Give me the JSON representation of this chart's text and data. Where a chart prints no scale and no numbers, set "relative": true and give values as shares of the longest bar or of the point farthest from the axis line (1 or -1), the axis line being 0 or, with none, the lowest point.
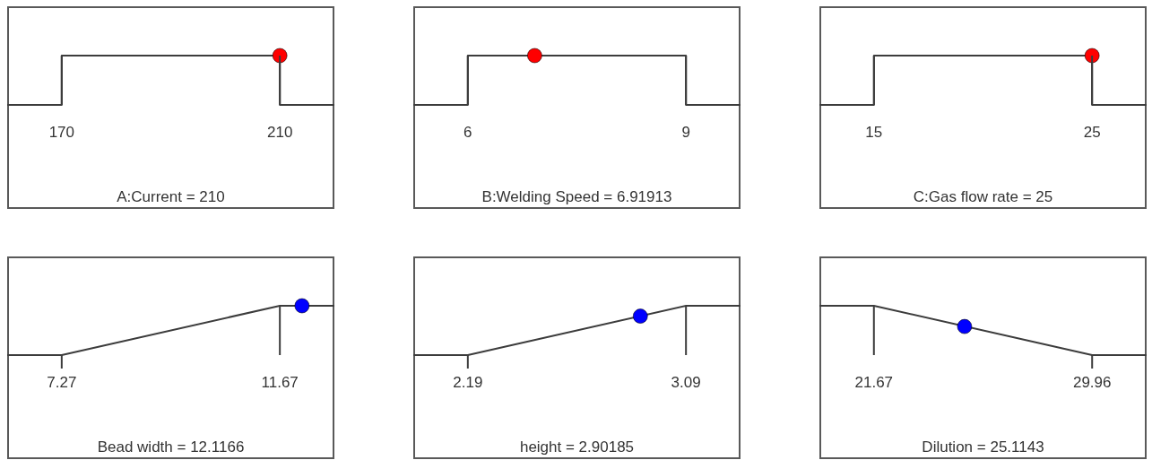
{
  "chart_data": [
    {
      "type": "line",
      "xlabel": "A:Current = 210",
      "relative": true,
      "xlim": [
        160,
        220
      ],
      "xticks": [
        170,
        210
      ],
      "series": [
        {
          "color": "#3c3c3c",
          "x": [
            160,
            170,
            170,
            210,
            210,
            220
          ],
          "values": [
            0,
            0,
            1,
            1,
            0,
            0
          ]
        },
        {
          "type": "scatter",
          "color": "#ff0000",
          "marker": "circle",
          "x": [
            210
          ],
          "values": [
            1
          ]
        }
      ]
    },
    {
      "type": "line",
      "xlabel": "B:Welding Speed = 6.91913",
      "relative": true,
      "xlim": [
        5.25,
        9.75
      ],
      "xticks": [
        6,
        9
      ],
      "series": [
        {
          "color": "#3c3c3c",
          "x": [
            5.25,
            6,
            6,
            9,
            9,
            9.75
          ],
          "values": [
            0,
            0,
            1,
            1,
            0,
            0
          ]
        },
        {
          "type": "scatter",
          "color": "#ff0000",
          "marker": "circle",
          "x": [
            6.91913
          ],
          "values": [
            1
          ]
        }
      ]
    },
    {
      "type": "line",
      "xlabel": "C:Gas flow rate = 25",
      "relative": true,
      "xlim": [
        12.5,
        27.5
      ],
      "xticks": [
        15,
        25
      ],
      "series": [
        {
          "color": "#3c3c3c",
          "x": [
            12.5,
            15,
            15,
            25,
            25,
            27.5
          ],
          "values": [
            0,
            0,
            1,
            1,
            0,
            0
          ]
        },
        {
          "type": "scatter",
          "color": "#ff0000",
          "marker": "circle",
          "x": [
            25
          ],
          "values": [
            1
          ]
        }
      ]
    },
    {
      "type": "line",
      "xlabel": "Bead width = 12.1166",
      "relative": true,
      "xlim": [
        6.17,
        12.77
      ],
      "xticks": [
        7.27,
        11.67
      ],
      "series": [
        {
          "color": "#3c3c3c",
          "x": [
            6.17,
            7.27,
            11.67,
            12.77
          ],
          "values": [
            0,
            0,
            1,
            1
          ]
        },
        {
          "type": "scatter",
          "color": "#0000ff",
          "marker": "circle",
          "x": [
            12.1166
          ],
          "values": [
            1
          ]
        }
      ]
    },
    {
      "type": "line",
      "xlabel": "height = 2.90185",
      "relative": true,
      "xlim": [
        1.965,
        3.315
      ],
      "xticks": [
        2.19,
        3.09
      ],
      "series": [
        {
          "color": "#3c3c3c",
          "x": [
            1.965,
            2.19,
            3.09,
            3.315
          ],
          "values": [
            0,
            0,
            1,
            1
          ]
        },
        {
          "type": "scatter",
          "color": "#0000ff",
          "marker": "circle",
          "x": [
            2.90185
          ],
          "values": [
            0.79
          ]
        }
      ]
    },
    {
      "type": "line",
      "xlabel": "Dilution = 25.1143",
      "relative": true,
      "xlim": [
        19.6,
        32.03
      ],
      "xticks": [
        21.67,
        29.96
      ],
      "series": [
        {
          "color": "#3c3c3c",
          "x": [
            19.6,
            21.67,
            29.96,
            32.03
          ],
          "values": [
            1,
            1,
            0,
            0
          ]
        },
        {
          "type": "scatter",
          "color": "#0000ff",
          "marker": "circle",
          "x": [
            25.1143
          ],
          "values": [
            0.58
          ]
        }
      ]
    }
  ]
}
